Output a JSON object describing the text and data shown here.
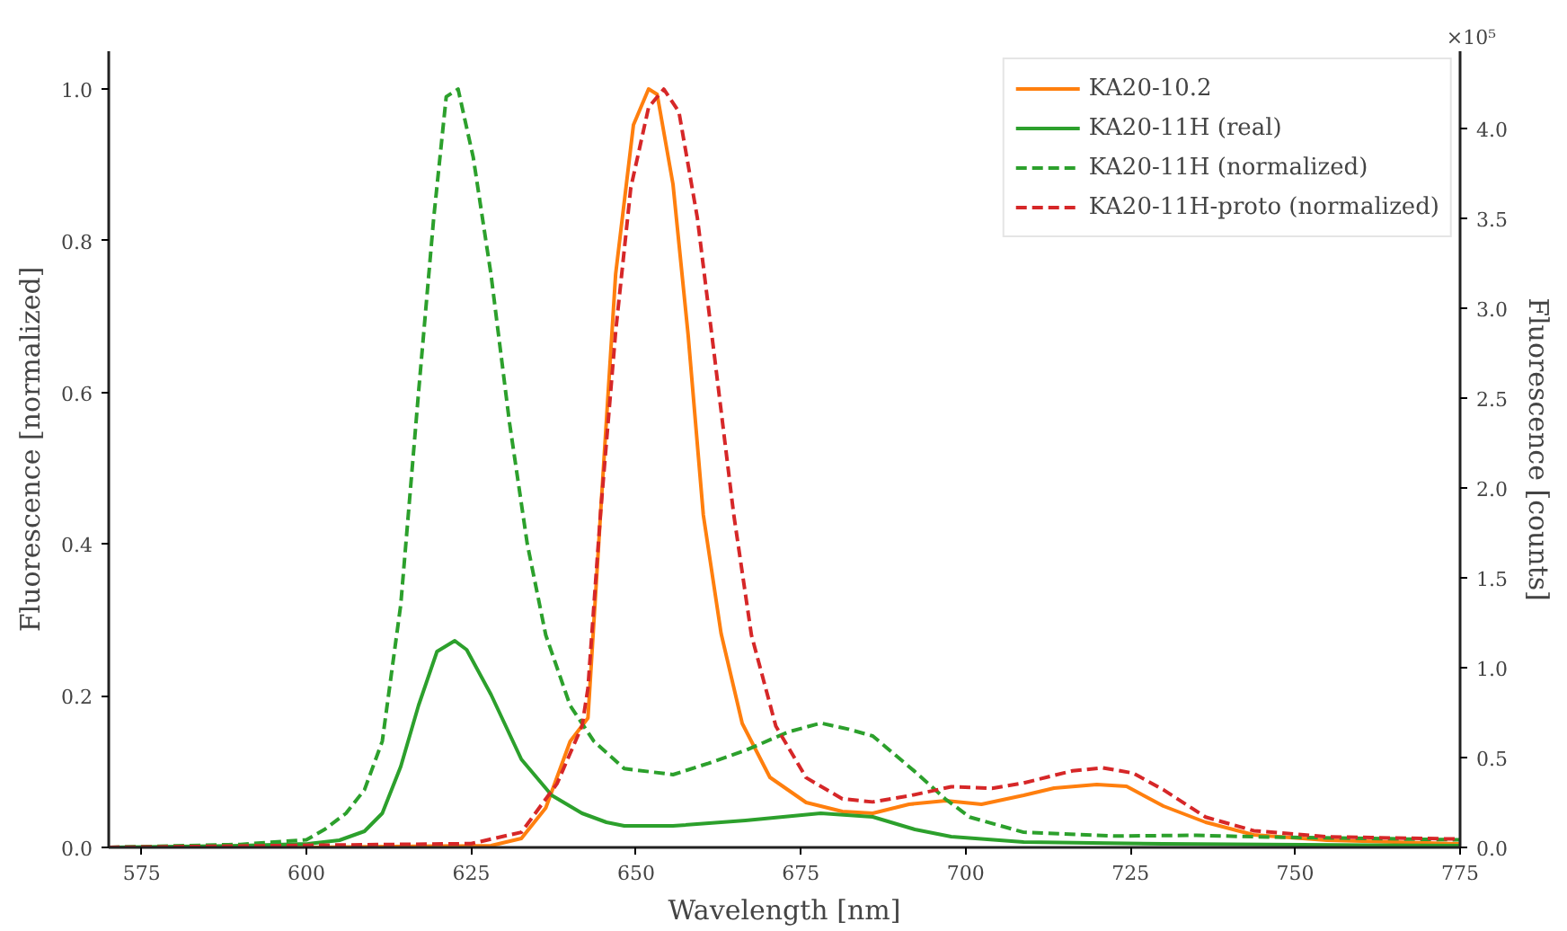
{
  "chart_data": {
    "type": "line",
    "xlabel": "Wavelength [nm]",
    "ylabel": "Fluorescence [normalized]",
    "y2label": "Fluorescence [counts]",
    "xlim": [
      570,
      775
    ],
    "xticks": [
      575,
      600,
      625,
      650,
      675,
      700,
      725,
      750,
      775
    ],
    "ylim": [
      0,
      1.05
    ],
    "yticks": [
      {
        "value": 0,
        "label": "0.0"
      },
      {
        "value": 0.2,
        "label": "0.2"
      },
      {
        "value": 0.4,
        "label": "0.4"
      },
      {
        "value": 0.6,
        "label": "0.6"
      },
      {
        "value": 0.8,
        "label": "0.8"
      },
      {
        "value": 1.0,
        "label": "1.0"
      }
    ],
    "y2lim": [
      0,
      4.43
    ],
    "y2ticks": [
      {
        "value": 0,
        "label": "0.0"
      },
      {
        "value": 0.5,
        "label": "0.5"
      },
      {
        "value": 1.0,
        "label": "1.0"
      },
      {
        "value": 1.5,
        "label": "1.5"
      },
      {
        "value": 2.0,
        "label": "2.0"
      },
      {
        "value": 2.5,
        "label": "2.5"
      },
      {
        "value": 3.0,
        "label": "3.0"
      },
      {
        "value": 3.5,
        "label": "3.5"
      },
      {
        "value": 4.0,
        "label": "4.0"
      }
    ],
    "annotations": [
      "×10⁵"
    ],
    "legend": "top right",
    "grid": false,
    "series": [
      {
        "name": "KA20-10.2",
        "color": "#ff7f0e",
        "axis": "y2",
        "line_style": "solid",
        "x": [
          570,
          600,
          628,
          632.6,
          636.3,
          640,
          642.7,
          644.6,
          646.9,
          649.6,
          651.9,
          653.2,
          655.6,
          657.9,
          660.2,
          662.9,
          666.1,
          670.3,
          675.8,
          681.3,
          685.9,
          691.4,
          697,
          702.4,
          708.8,
          713.4,
          719.9,
          724.4,
          730,
          736.4,
          743.7,
          754.8,
          775
        ],
        "values": [
          0,
          0,
          0.01,
          0.05,
          0.22,
          0.59,
          0.72,
          1.85,
          3.19,
          4.02,
          4.22,
          4.19,
          3.69,
          2.85,
          1.85,
          1.19,
          0.69,
          0.39,
          0.25,
          0.2,
          0.19,
          0.24,
          0.26,
          0.24,
          0.29,
          0.33,
          0.35,
          0.34,
          0.23,
          0.14,
          0.07,
          0.04,
          0.02
        ]
      },
      {
        "name": "KA20-11H (real)",
        "color": "#2ca02c",
        "axis": "y2",
        "line_style": "solid",
        "x": [
          570,
          590,
          600.2,
          605,
          608.8,
          611.5,
          614.3,
          617,
          619.8,
          622.5,
          624.3,
          628,
          632.6,
          637.2,
          641.8,
          645.5,
          648.2,
          655.6,
          666.6,
          678,
          685.9,
          692.3,
          697.8,
          708.8,
          730,
          775
        ],
        "values": [
          0,
          0.01,
          0.02,
          0.04,
          0.09,
          0.19,
          0.45,
          0.79,
          1.09,
          1.15,
          1.1,
          0.85,
          0.49,
          0.29,
          0.19,
          0.14,
          0.12,
          0.12,
          0.15,
          0.19,
          0.17,
          0.1,
          0.06,
          0.03,
          0.02,
          0.01
        ]
      },
      {
        "name": "KA20-11H (normalized)",
        "color": "#2ca02c",
        "line_style": "dashed",
        "x": [
          570,
          590,
          600,
          602.8,
          606,
          608.8,
          611.5,
          614.3,
          617,
          619.3,
          621.2,
          623,
          625.3,
          628,
          630.8,
          633.5,
          636.3,
          640,
          643.6,
          648.2,
          655.6,
          661,
          666.6,
          673,
          678,
          682.2,
          685.9,
          692.3,
          696.9,
          700.6,
          708.8,
          722.6,
          735,
          744,
          775
        ],
        "values": [
          0,
          0.004,
          0.01,
          0.024,
          0.045,
          0.076,
          0.14,
          0.32,
          0.6,
          0.83,
          0.99,
          1.0,
          0.91,
          0.755,
          0.56,
          0.4,
          0.28,
          0.187,
          0.14,
          0.104,
          0.096,
          0.111,
          0.128,
          0.152,
          0.164,
          0.156,
          0.147,
          0.1,
          0.064,
          0.04,
          0.02,
          0.015,
          0.016,
          0.014,
          0.01
        ]
      },
      {
        "name": "KA20-11H-proto (normalized)",
        "color": "#d62728",
        "line_style": "dashed",
        "x": [
          570,
          625,
          632.6,
          638,
          641.8,
          642.7,
          644.6,
          646.9,
          649.2,
          651.9,
          654.2,
          656.5,
          659.3,
          662,
          664.8,
          667.5,
          671.2,
          675.8,
          681.3,
          685.9,
          691.4,
          697.8,
          704,
          708.8,
          716.2,
          720.8,
          725.4,
          730,
          736.4,
          743.7,
          754.8,
          775
        ],
        "values": [
          0,
          0.005,
          0.02,
          0.084,
          0.16,
          0.21,
          0.44,
          0.68,
          0.87,
          0.976,
          1.0,
          0.97,
          0.83,
          0.64,
          0.44,
          0.28,
          0.16,
          0.092,
          0.064,
          0.06,
          0.068,
          0.08,
          0.078,
          0.085,
          0.101,
          0.105,
          0.098,
          0.076,
          0.04,
          0.022,
          0.014,
          0.011
        ]
      }
    ]
  }
}
